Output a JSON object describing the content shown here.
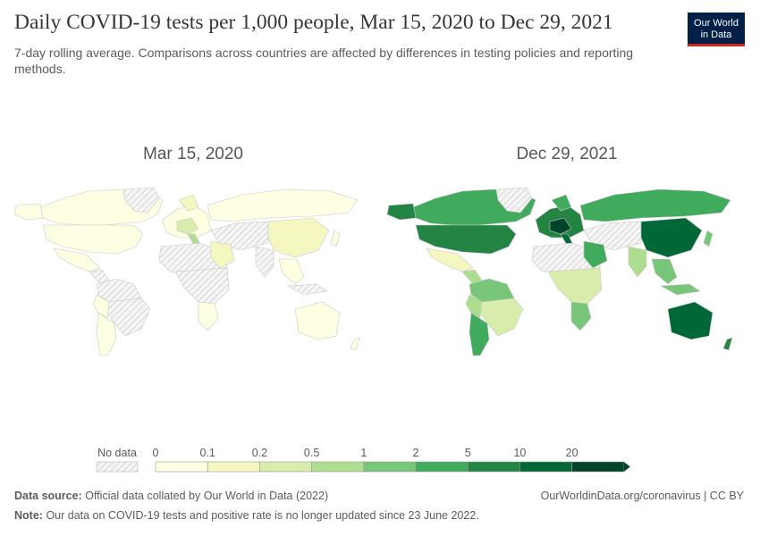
{
  "header": {
    "title": "Daily COVID-19 tests per 1,000 people, Mar 15, 2020 to Dec 29, 2021",
    "subtitle": "7-day rolling average. Comparisons across countries are affected by differences in testing policies and reporting methods."
  },
  "logo": {
    "line1": "Our World",
    "line2": "in Data"
  },
  "maps": [
    {
      "label": "Mar 15, 2020"
    },
    {
      "label": "Dec 29, 2021"
    }
  ],
  "legend": {
    "no_data_label": "No data",
    "ticks": [
      "0",
      "0.1",
      "0.2",
      "0.5",
      "1",
      "2",
      "5",
      "10",
      "20"
    ],
    "colors": [
      "#fefee2",
      "#f4f8c0",
      "#d8ecab",
      "#addd8e",
      "#78c679",
      "#41ab5d",
      "#238443",
      "#006837",
      "#004529"
    ]
  },
  "footer": {
    "source_label": "Data source:",
    "source_text": "Official data collated by Our World in Data (2022)",
    "note_label": "Note:",
    "note_text": "Our data on COVID-19 tests and positive rate is no longer updated since 23 June 2022.",
    "link": "OurWorldinData.org/coronavirus | CC BY"
  }
}
